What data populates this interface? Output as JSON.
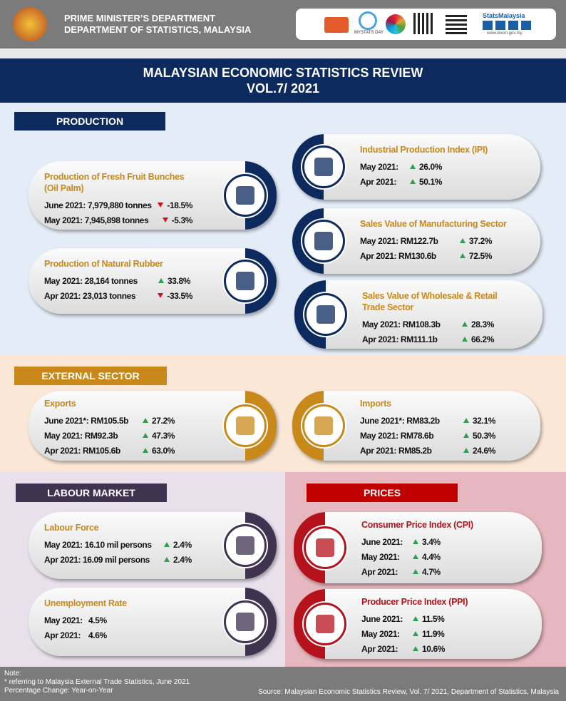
{
  "header": {
    "line1": "PRIME MINISTER’S DEPARTMENT",
    "line2": "DEPARTMENT OF STATISTICS, MALAYSIA",
    "brand": "StatsMalaysia",
    "website": "www.dosm.gov.my",
    "logo_text": "MYSTATS DAY"
  },
  "title": {
    "line1": "MALAYSIAN ECONOMIC STATISTICS REVIEW",
    "line2": "VOL.7/ 2021"
  },
  "sections": [
    {
      "header": "PRODUCTION",
      "cards": [
        {
          "title": "Production of Fresh Fruit Bunches (Oil Palm)",
          "rows": [
            {
              "label": "June 2021: 7,979,880 tonnes",
              "change": "-18.5%",
              "direction": "down"
            },
            {
              "label": "May 2021: 7,945,898 tonnes",
              "change": "-5.3%",
              "direction": "down"
            }
          ]
        },
        {
          "title": "Production of Natural Rubber",
          "rows": [
            {
              "label": "May 2021: 28,164 tonnes",
              "change": "33.8%",
              "direction": "up"
            },
            {
              "label": "Apr 2021: 23,013 tonnes",
              "change": "-33.5%",
              "direction": "down"
            }
          ]
        },
        {
          "title": "Industrial Production Index (IPI)",
          "rows": [
            {
              "label": "May 2021:",
              "change": "26.0%",
              "direction": "up"
            },
            {
              "label": "Apr 2021:",
              "change": "50.1%",
              "direction": "up"
            }
          ]
        },
        {
          "title": "Sales Value of Manufacturing Sector",
          "rows": [
            {
              "label": "May 2021: RM122.7b",
              "change": "37.2%",
              "direction": "up"
            },
            {
              "label": "Apr 2021: RM130.6b",
              "change": "72.5%",
              "direction": "up"
            }
          ]
        },
        {
          "title": "Sales Value of  Wholesale & Retail Trade Sector",
          "rows": [
            {
              "label": "May 2021: RM108.3b",
              "change": "28.3%",
              "direction": "up"
            },
            {
              "label": "Apr 2021: RM111.1b",
              "change": "66.2%",
              "direction": "up"
            }
          ]
        }
      ]
    },
    {
      "header": "EXTERNAL  SECTOR",
      "cards": [
        {
          "title": "Exports",
          "rows": [
            {
              "label": "June 2021*: RM105.5b",
              "change": "27.2%",
              "direction": "up"
            },
            {
              "label": "May 2021: RM92.3b",
              "change": "47.3%",
              "direction": "up"
            },
            {
              "label": "Apr 2021: RM105.6b",
              "change": "63.0%",
              "direction": "up"
            }
          ]
        },
        {
          "title": "Imports",
          "rows": [
            {
              "label": "June 2021*: RM83.2b",
              "change": "32.1%",
              "direction": "up"
            },
            {
              "label": "May 2021: RM78.6b",
              "change": "50.3%",
              "direction": "up"
            },
            {
              "label": "Apr 2021: RM85.2b",
              "change": "24.6%",
              "direction": "up"
            }
          ]
        }
      ]
    },
    {
      "header": "LABOUR MARKET",
      "cards": [
        {
          "title": "Labour Force",
          "rows": [
            {
              "label": "May 2021: 16.10 mil persons",
              "change": "2.4%",
              "direction": "up"
            },
            {
              "label": "Apr 2021: 16.09 mil persons",
              "change": "2.4%",
              "direction": "up"
            }
          ]
        },
        {
          "title": "Unemployment Rate",
          "rows": [
            {
              "label": "May 2021:",
              "change": "4.5%"
            },
            {
              "label": "Apr 2021:",
              "change": "4.6%"
            }
          ]
        }
      ]
    },
    {
      "header": "PRICES",
      "cards": [
        {
          "title": "Consumer Price Index (CPI)",
          "rows": [
            {
              "label": "June 2021:",
              "change": "3.4%",
              "direction": "up"
            },
            {
              "label": "May 2021:",
              "change": "4.4%",
              "direction": "up"
            },
            {
              "label": "Apr 2021:",
              "change": "4.7%",
              "direction": "up"
            }
          ]
        },
        {
          "title": "Producer Price Index (PPI)",
          "rows": [
            {
              "label": "June 2021:",
              "change": "11.5%",
              "direction": "up"
            },
            {
              "label": "May 2021:",
              "change": "11.9%",
              "direction": "up"
            },
            {
              "label": "Apr 2021:",
              "change": "10.6%",
              "direction": "up"
            }
          ]
        }
      ]
    }
  ],
  "footer": {
    "note": "Note:",
    "note_line1": "* referring  to Malaysia External Trade Statistics, June 2021",
    "note_line2": "Percentage  Change: Year-on-Year",
    "source": "Source:  Malaysian Economic Statistics Review, Vol. 7/ 2021, Department  of Statistics,  Malaysia"
  }
}
